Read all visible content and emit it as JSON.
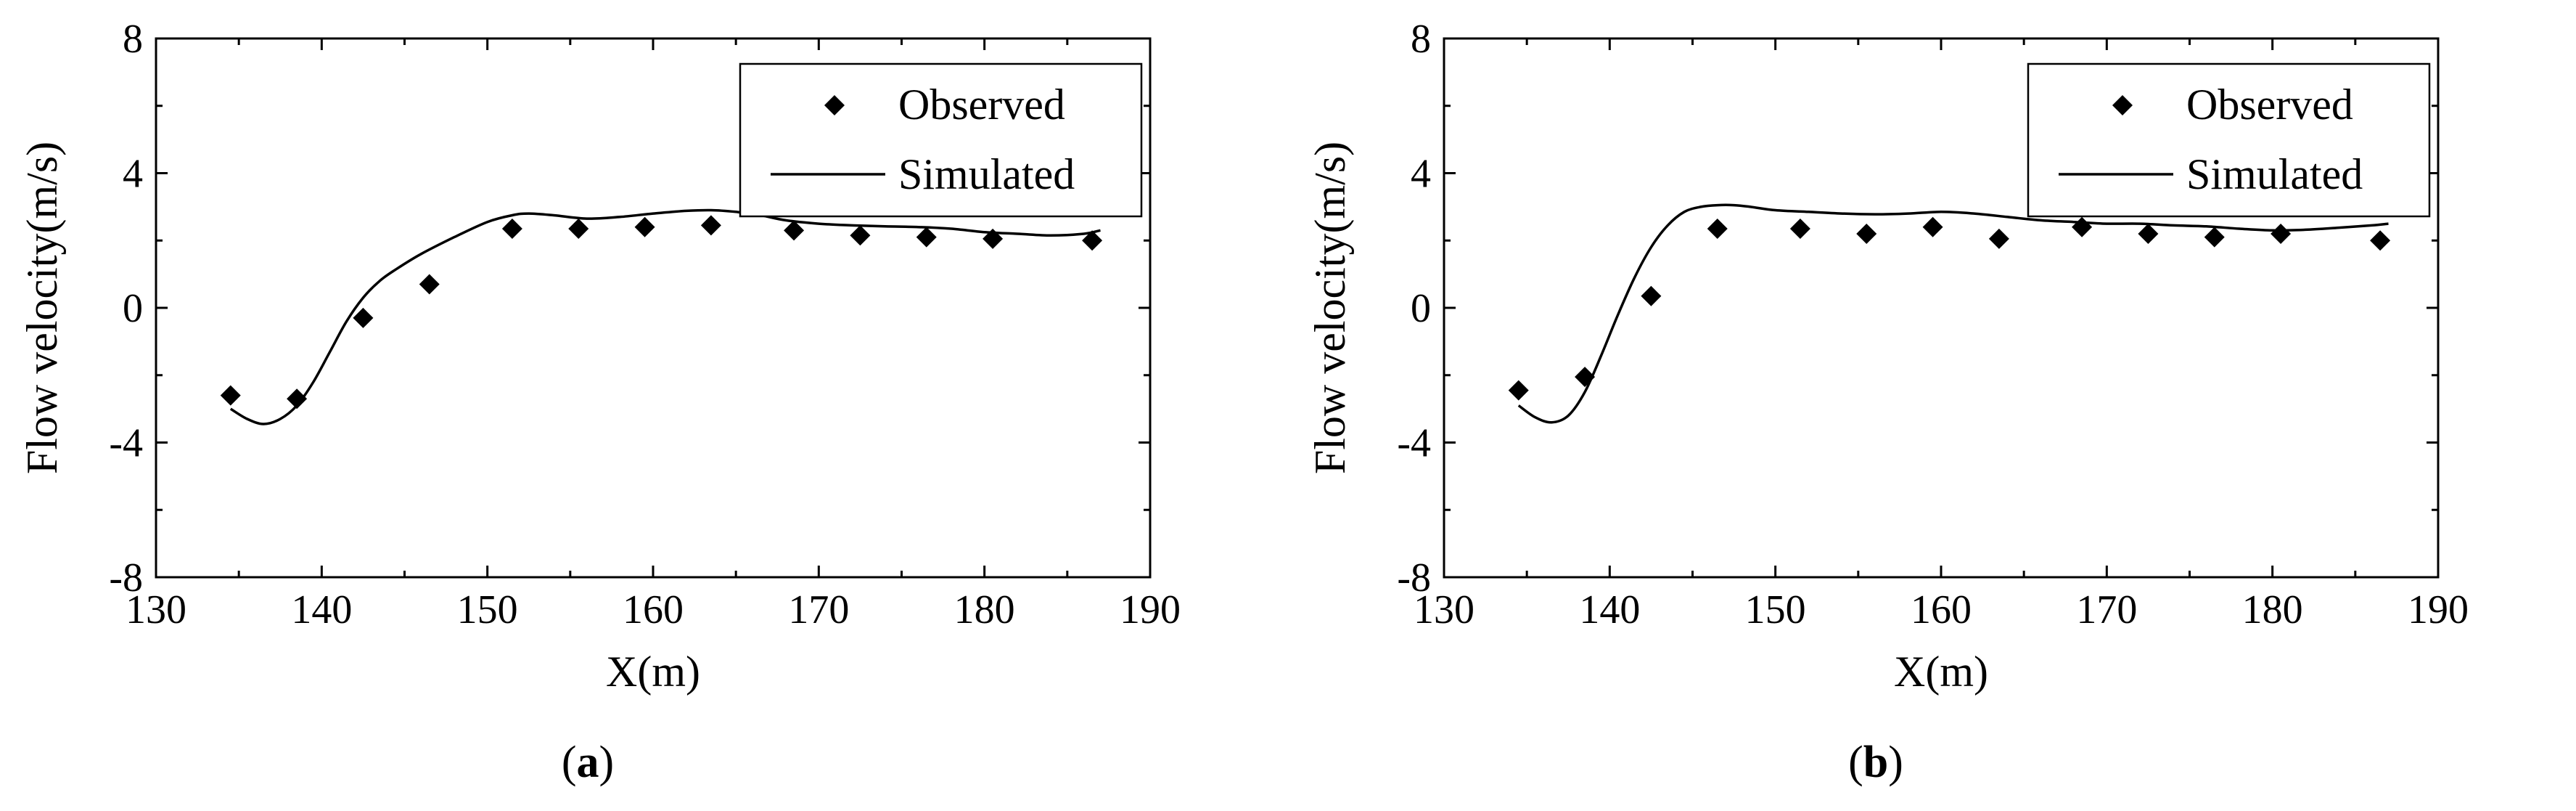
{
  "chart_data": [
    {
      "type": "scatter",
      "panel_label": "a",
      "xlabel": "X(m)",
      "ylabel": "Flow velocity(m/s)",
      "xlim": [
        130,
        190
      ],
      "ylim": [
        -8,
        8
      ],
      "xticks": [
        "130",
        "140",
        "150",
        "160",
        "170",
        "180",
        "190"
      ],
      "yticks": [
        "-8",
        "-4",
        "0",
        "4",
        "8"
      ],
      "legend_position": "top-right",
      "series": [
        {
          "name": "Observed",
          "marker": "diamond",
          "x": [
            134.5,
            138.5,
            142.5,
            146.5,
            151.5,
            155.5,
            159.5,
            163.5,
            168.5,
            172.5,
            176.5,
            180.5,
            186.5
          ],
          "y": [
            -2.6,
            -2.7,
            -0.3,
            0.7,
            2.35,
            2.35,
            2.4,
            2.45,
            2.3,
            2.15,
            2.1,
            2.05,
            2.0
          ]
        },
        {
          "name": "Simulated",
          "marker": "line",
          "x": [
            134.5,
            135.5,
            136.5,
            137.5,
            138.5,
            139.5,
            140.5,
            141.5,
            142.5,
            143.5,
            144.5,
            146,
            148,
            150,
            151.5,
            152.5,
            154,
            156,
            158,
            160,
            162,
            163.5,
            165,
            166.5,
            168,
            170,
            172,
            174,
            176,
            178,
            180,
            182,
            184,
            186,
            187
          ],
          "y": [
            -3.0,
            -3.3,
            -3.45,
            -3.3,
            -2.9,
            -2.2,
            -1.3,
            -0.4,
            0.3,
            0.8,
            1.15,
            1.6,
            2.1,
            2.55,
            2.75,
            2.8,
            2.75,
            2.65,
            2.7,
            2.8,
            2.88,
            2.9,
            2.85,
            2.75,
            2.6,
            2.5,
            2.45,
            2.42,
            2.4,
            2.35,
            2.25,
            2.2,
            2.15,
            2.2,
            2.3
          ]
        }
      ]
    },
    {
      "type": "scatter",
      "panel_label": "b",
      "xlabel": "X(m)",
      "ylabel": "Flow velocity(m/s)",
      "xlim": [
        130,
        190
      ],
      "ylim": [
        -8,
        8
      ],
      "xticks": [
        "130",
        "140",
        "150",
        "160",
        "170",
        "180",
        "190"
      ],
      "yticks": [
        "-8",
        "-4",
        "0",
        "4",
        "8"
      ],
      "legend_position": "top-right",
      "series": [
        {
          "name": "Observed",
          "marker": "diamond",
          "x": [
            134.5,
            138.5,
            142.5,
            146.5,
            151.5,
            155.5,
            159.5,
            163.5,
            168.5,
            172.5,
            176.5,
            180.5,
            186.5
          ],
          "y": [
            -2.45,
            -2.05,
            0.35,
            2.35,
            2.35,
            2.2,
            2.4,
            2.05,
            2.4,
            2.2,
            2.1,
            2.2,
            2.0
          ]
        },
        {
          "name": "Simulated",
          "marker": "line",
          "x": [
            134.5,
            135.5,
            136.5,
            137.5,
            138.5,
            139.5,
            140.5,
            141.5,
            142.5,
            143.5,
            144.5,
            145.5,
            146.5,
            147.5,
            148.5,
            150,
            152,
            154,
            156,
            158,
            160,
            162,
            164,
            166,
            168,
            170,
            172,
            174,
            176,
            178,
            180,
            182,
            184,
            186,
            187
          ],
          "y": [
            -2.9,
            -3.25,
            -3.4,
            -3.2,
            -2.5,
            -1.4,
            -0.2,
            0.9,
            1.8,
            2.45,
            2.85,
            3.0,
            3.05,
            3.05,
            3.0,
            2.9,
            2.85,
            2.8,
            2.78,
            2.8,
            2.85,
            2.8,
            2.7,
            2.6,
            2.55,
            2.5,
            2.5,
            2.45,
            2.42,
            2.35,
            2.3,
            2.32,
            2.38,
            2.45,
            2.5
          ]
        }
      ]
    }
  ]
}
